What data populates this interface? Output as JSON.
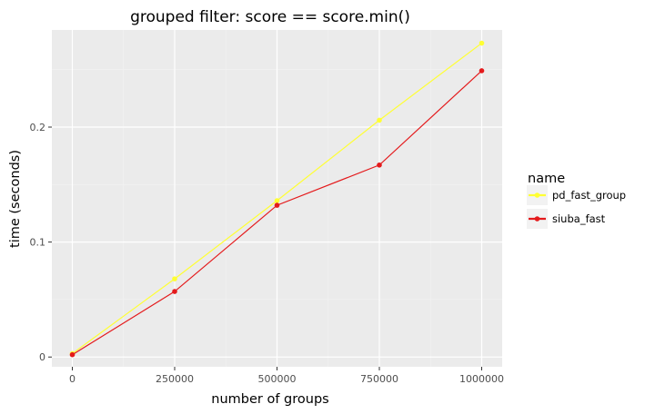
{
  "chart_data": {
    "type": "line",
    "title": "grouped filter: score == score.min()",
    "xlabel": "number of groups",
    "ylabel": "time (seconds)",
    "x": [
      0,
      250000,
      500000,
      750000,
      1000000
    ],
    "xlim": [
      -50000,
      1050000
    ],
    "ylim": [
      -0.0085,
      0.2845
    ],
    "xticks": [
      0,
      250000,
      500000,
      750000,
      1000000
    ],
    "xtick_labels": [
      "0",
      "250000",
      "500000",
      "750000",
      "1000000"
    ],
    "yticks": [
      0,
      0.1,
      0.2
    ],
    "ytick_labels": [
      "0",
      "0.1",
      "0.2"
    ],
    "grid": true,
    "background": "#ebebeb",
    "legend": {
      "title": "name",
      "position": "right"
    },
    "series": [
      {
        "name": "pd_fast_group",
        "color": "#ffff33",
        "values": [
          0.003,
          0.068,
          0.136,
          0.206,
          0.273
        ]
      },
      {
        "name": "siuba_fast",
        "color": "#e41a1c",
        "values": [
          0.002,
          0.057,
          0.132,
          0.167,
          0.249
        ]
      }
    ]
  }
}
